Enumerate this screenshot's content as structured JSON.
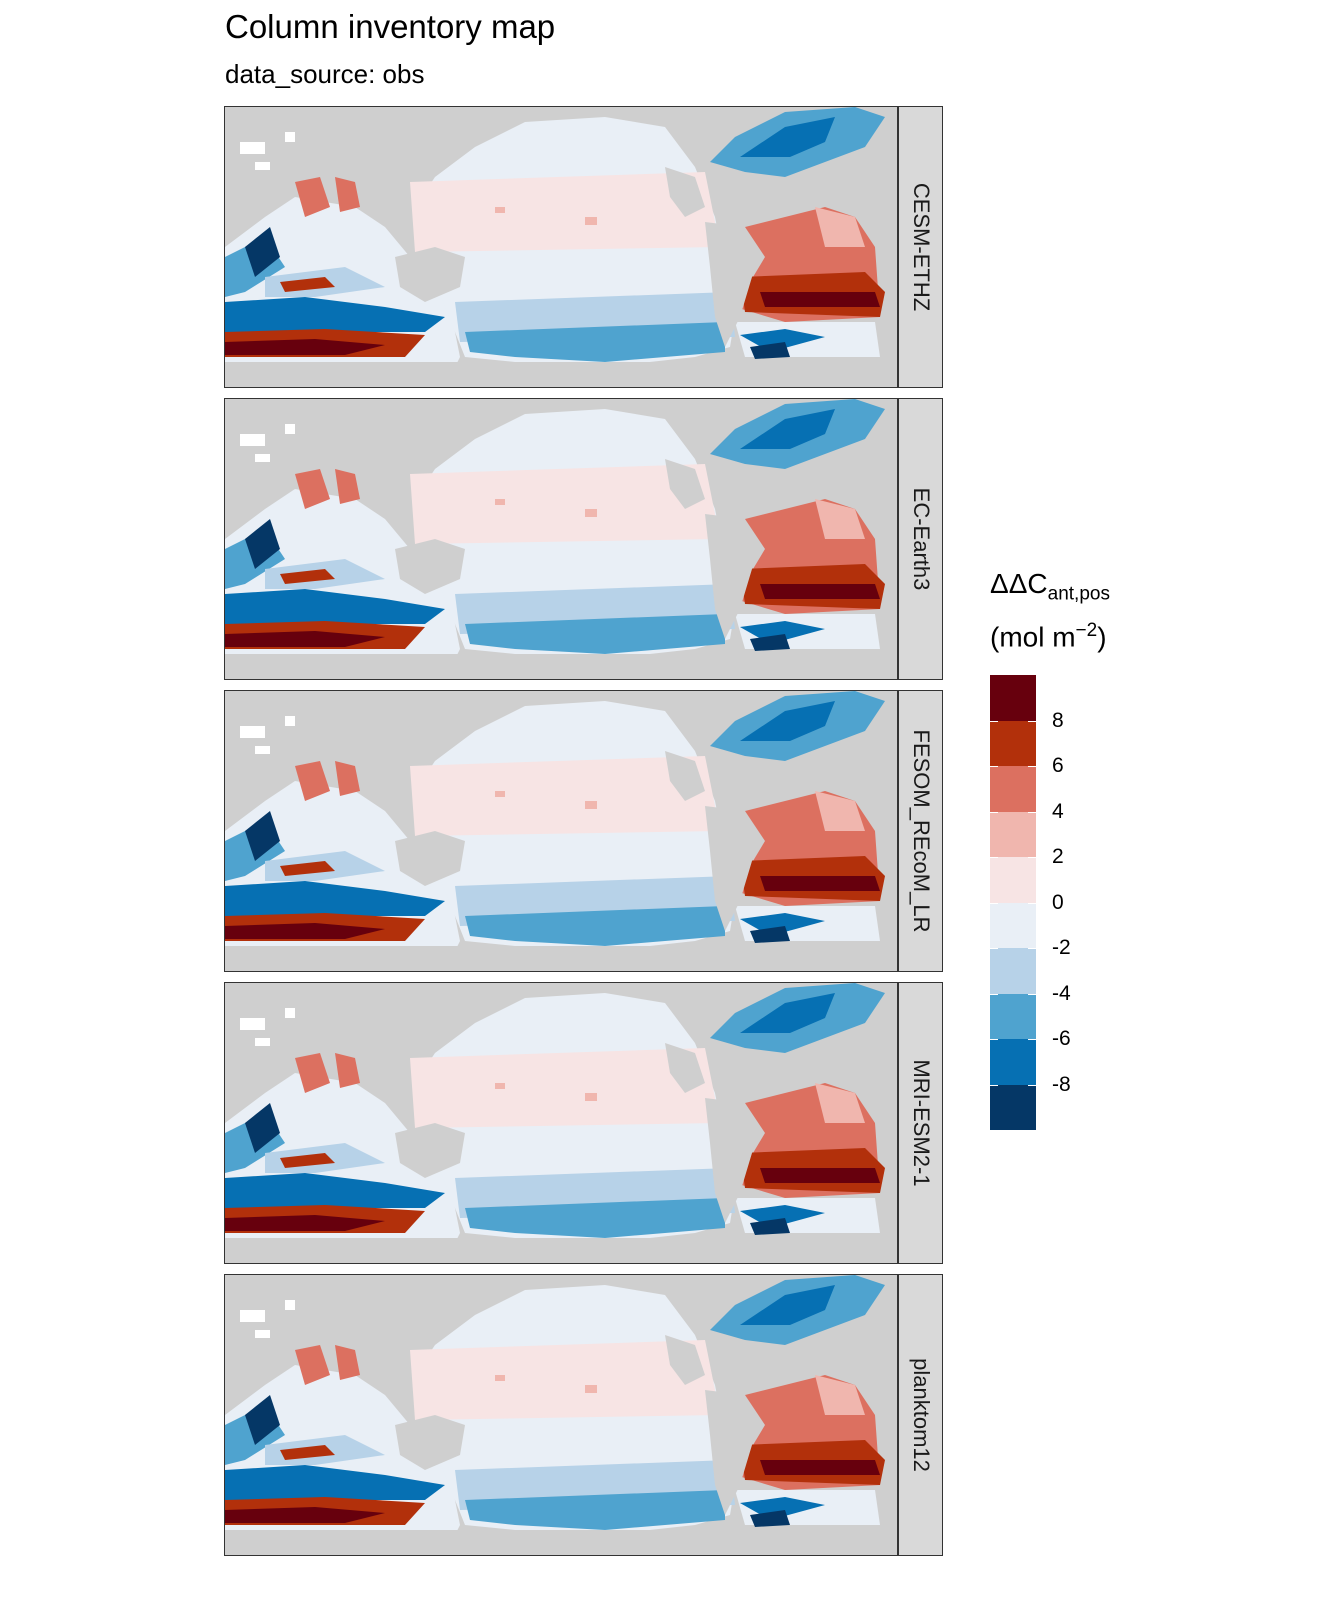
{
  "title": "Column inventory map",
  "subtitle": "data_source: obs",
  "panels": [
    {
      "label": "CESM-ETHZ"
    },
    {
      "label": "EC-Earth3"
    },
    {
      "label": "FESOM_REcoM_LR"
    },
    {
      "label": "MRI-ESM2-1"
    },
    {
      "label": "planktom12"
    }
  ],
  "legend": {
    "title_main": "ΔΔC",
    "title_sub": "ant,pos",
    "unit_open": "(mol m",
    "unit_sup": "−2",
    "unit_close": ")",
    "ticks": [
      "8",
      "6",
      "4",
      "2",
      "0",
      "-2",
      "-4",
      "-6",
      "-8"
    ],
    "colors": [
      "#67000d",
      "#b2300b",
      "#dc7060",
      "#f0b6ae",
      "#f7e4e4",
      "#e9eff6",
      "#b7d2e8",
      "#4fa3cf",
      "#0670b3",
      "#053766"
    ]
  },
  "colors": {
    "land": "#cfcfcf",
    "strip": "#d9d9d9"
  }
}
